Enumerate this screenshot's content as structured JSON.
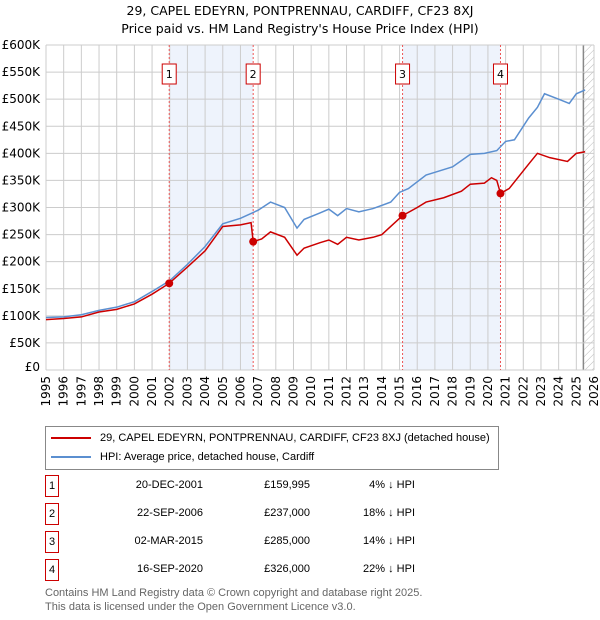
{
  "chart_data": {
    "type": "line",
    "title": "29, CAPEL EDEYRN, PONTPRENNAU, CARDIFF, CF23 8XJ",
    "subtitle": "Price paid vs. HM Land Registry's House Price Index (HPI)",
    "xlim": [
      1995,
      2026
    ],
    "ylim": [
      0,
      600000
    ],
    "x_ticks": [
      "1995",
      "1996",
      "1997",
      "1998",
      "1999",
      "2000",
      "2001",
      "2002",
      "2003",
      "2004",
      "2005",
      "2006",
      "2007",
      "2008",
      "2009",
      "2010",
      "2011",
      "2012",
      "2013",
      "2014",
      "2015",
      "2016",
      "2017",
      "2018",
      "2019",
      "2020",
      "2021",
      "2022",
      "2023",
      "2024",
      "2025",
      "2026"
    ],
    "y_ticks": [
      {
        "v": 0,
        "l": "£0"
      },
      {
        "v": 50000,
        "l": "£50K"
      },
      {
        "v": 100000,
        "l": "£100K"
      },
      {
        "v": 150000,
        "l": "£150K"
      },
      {
        "v": 200000,
        "l": "£200K"
      },
      {
        "v": 250000,
        "l": "£250K"
      },
      {
        "v": 300000,
        "l": "£300K"
      },
      {
        "v": 350000,
        "l": "£350K"
      },
      {
        "v": 400000,
        "l": "£400K"
      },
      {
        "v": 450000,
        "l": "£450K"
      },
      {
        "v": 500000,
        "l": "£500K"
      },
      {
        "v": 550000,
        "l": "£550K"
      },
      {
        "v": 600000,
        "l": "£600K"
      }
    ],
    "grid": true,
    "series": [
      {
        "name": "29, CAPEL EDEYRN, PONTPRENNAU, CARDIFF, CF23 8XJ (detached house)",
        "color": "#cc0000",
        "points": [
          [
            1995,
            93
          ],
          [
            1996,
            95
          ],
          [
            1997,
            98
          ],
          [
            1998,
            107
          ],
          [
            1999,
            112
          ],
          [
            2000,
            122
          ],
          [
            2001,
            140
          ],
          [
            2001.97,
            160
          ],
          [
            2003,
            190
          ],
          [
            2004,
            220
          ],
          [
            2005,
            265
          ],
          [
            2006,
            268
          ],
          [
            2006.6,
            272
          ],
          [
            2006.72,
            237
          ],
          [
            2007.2,
            242
          ],
          [
            2007.7,
            255
          ],
          [
            2008.5,
            245
          ],
          [
            2009.2,
            212
          ],
          [
            2009.6,
            225
          ],
          [
            2010.5,
            235
          ],
          [
            2011,
            240
          ],
          [
            2011.5,
            232
          ],
          [
            2012,
            245
          ],
          [
            2012.7,
            240
          ],
          [
            2013.5,
            245
          ],
          [
            2014,
            250
          ],
          [
            2014.5,
            265
          ],
          [
            2015.17,
            285
          ],
          [
            2016,
            300
          ],
          [
            2016.5,
            310
          ],
          [
            2017.5,
            318
          ],
          [
            2018.5,
            330
          ],
          [
            2019,
            343
          ],
          [
            2019.8,
            345
          ],
          [
            2020.2,
            355
          ],
          [
            2020.5,
            350
          ],
          [
            2020.71,
            326
          ],
          [
            2021.2,
            335
          ],
          [
            2022.3,
            380
          ],
          [
            2022.8,
            400
          ],
          [
            2023.5,
            392
          ],
          [
            2024.5,
            385
          ],
          [
            2025,
            400
          ],
          [
            2025.5,
            403
          ]
        ]
      },
      {
        "name": "HPI: Average price, detached house, Cardiff",
        "color": "#5b8fd0",
        "points": [
          [
            1995,
            97
          ],
          [
            1996,
            98
          ],
          [
            1997,
            102
          ],
          [
            1998,
            110
          ],
          [
            1999,
            116
          ],
          [
            2000,
            126
          ],
          [
            2001,
            145
          ],
          [
            2002,
            165
          ],
          [
            2003,
            195
          ],
          [
            2004,
            228
          ],
          [
            2005,
            270
          ],
          [
            2006,
            280
          ],
          [
            2007,
            295
          ],
          [
            2007.7,
            310
          ],
          [
            2008.5,
            300
          ],
          [
            2009.2,
            262
          ],
          [
            2009.6,
            278
          ],
          [
            2010.5,
            290
          ],
          [
            2011,
            297
          ],
          [
            2011.5,
            285
          ],
          [
            2012,
            298
          ],
          [
            2012.7,
            292
          ],
          [
            2013.5,
            298
          ],
          [
            2014.5,
            310
          ],
          [
            2015,
            328
          ],
          [
            2015.5,
            335
          ],
          [
            2016.5,
            360
          ],
          [
            2017,
            365
          ],
          [
            2018,
            375
          ],
          [
            2019,
            398
          ],
          [
            2019.8,
            400
          ],
          [
            2020.5,
            405
          ],
          [
            2021,
            422
          ],
          [
            2021.5,
            425
          ],
          [
            2022.3,
            465
          ],
          [
            2022.8,
            485
          ],
          [
            2023.2,
            510
          ],
          [
            2024,
            500
          ],
          [
            2024.6,
            492
          ],
          [
            2025,
            510
          ],
          [
            2025.5,
            517
          ]
        ]
      }
    ],
    "sales": [
      {
        "n": "1",
        "x": 2001.97,
        "price": 159995,
        "date": "20-DEC-2001",
        "price_label": "£159,995",
        "hpi": "4% ↓ HPI"
      },
      {
        "n": "2",
        "x": 2006.72,
        "price": 237000,
        "date": "22-SEP-2006",
        "price_label": "£237,000",
        "hpi": "18% ↓ HPI"
      },
      {
        "n": "3",
        "x": 2015.17,
        "price": 285000,
        "date": "02-MAR-2015",
        "price_label": "£285,000",
        "hpi": "14% ↓ HPI"
      },
      {
        "n": "4",
        "x": 2020.71,
        "price": 326000,
        "date": "16-SEP-2020",
        "price_label": "£326,000",
        "hpi": "22% ↓ HPI"
      }
    ],
    "shaded": [
      [
        2001.97,
        2006.72
      ],
      [
        2015.17,
        2020.71
      ]
    ],
    "forecast_from": 2025.4
  },
  "footer": {
    "line1": "Contains HM Land Registry data © Crown copyright and database right 2025.",
    "line2": "This data is licensed under the Open Government Licence v3.0."
  }
}
